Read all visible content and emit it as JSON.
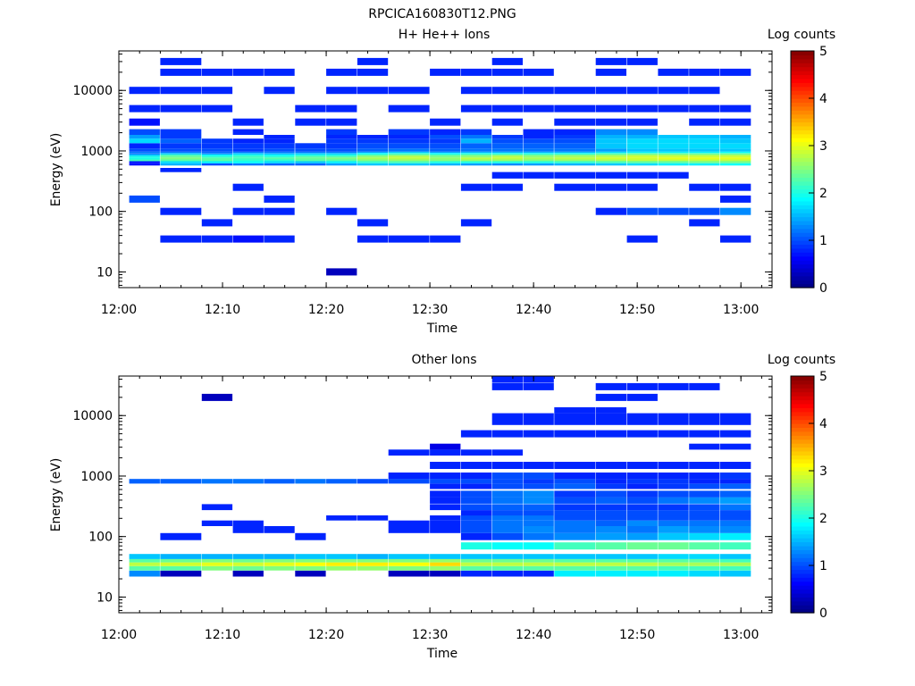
{
  "file_title": "RPCICA160830T12.PNG",
  "colorbar": {
    "label": "Log counts",
    "min": 0,
    "max": 5,
    "ticks": [
      "0",
      "1",
      "2",
      "3",
      "4",
      "5"
    ],
    "colormap": "jet"
  },
  "chart_data": [
    {
      "type": "heatmap",
      "title": "H+ He++ Ions",
      "xlabel": "Time",
      "ylabel": "Energy (eV)",
      "x_ticks": [
        "12:00",
        "12:10",
        "12:20",
        "12:30",
        "12:40",
        "12:50",
        "13:00"
      ],
      "x_range": [
        "12:00",
        "13:03"
      ],
      "y_ticks": [
        "10",
        "100",
        "1000",
        "10000"
      ],
      "y_range": [
        5.5,
        45000
      ],
      "y_scale": "log",
      "z_label": "Log counts",
      "time_bins": [
        "12:01",
        "12:04",
        "12:08",
        "12:11",
        "12:14",
        "12:17",
        "12:20",
        "12:23",
        "12:26",
        "12:30",
        "12:33",
        "12:36",
        "12:39",
        "12:42",
        "12:46",
        "12:49",
        "12:52",
        "12:55",
        "12:58"
      ],
      "energy_bins": [
        10,
        35,
        65,
        100,
        160,
        250,
        400,
        500,
        550,
        600,
        650,
        700,
        750,
        800,
        850,
        900,
        950,
        1000,
        1200,
        1500,
        1700,
        2000,
        3000,
        5000,
        10000,
        20000,
        30000
      ],
      "values": [
        [
          0,
          0,
          0,
          0,
          1,
          0,
          0,
          0,
          0,
          0.7,
          0.7,
          2.2,
          2,
          2,
          1.6,
          1.2,
          1.2,
          1,
          0.8,
          1.7,
          1.4,
          1,
          0.7,
          0.8,
          0.8,
          0,
          0
        ],
        [
          0,
          0.8,
          0,
          0.8,
          0,
          0,
          0,
          0.8,
          0,
          1.5,
          1.7,
          2.3,
          2.5,
          2.4,
          2.2,
          1.6,
          1.2,
          1,
          0.9,
          1.1,
          0.9,
          0.9,
          0,
          0.8,
          0.8,
          0.8,
          0.8
        ],
        [
          0,
          0.8,
          0.8,
          0,
          0,
          0,
          0,
          0,
          0,
          1,
          1.8,
          2.3,
          2.3,
          2.1,
          1.9,
          1.3,
          1.1,
          1,
          0.9,
          0.9,
          0,
          0,
          0,
          0.8,
          0.8,
          0.8,
          0
        ],
        [
          0,
          0.7,
          0,
          0.8,
          0,
          0.8,
          0,
          0,
          0,
          1.2,
          1.9,
          2.1,
          2.2,
          2.2,
          2,
          1.6,
          1.2,
          0.9,
          0.9,
          0.8,
          0,
          0.8,
          0.8,
          0,
          0,
          0.8,
          0
        ],
        [
          0,
          0.8,
          0,
          0.8,
          0.8,
          0,
          0,
          0,
          0,
          1.1,
          1.7,
          2.1,
          2.3,
          2.1,
          1.9,
          1.5,
          1.2,
          1,
          0.9,
          0.8,
          0.8,
          0,
          0,
          0,
          0.8,
          0.8,
          0
        ],
        [
          0,
          0,
          0,
          0,
          0,
          0,
          0,
          0,
          0,
          1.1,
          1.6,
          2.3,
          2.4,
          2.3,
          2,
          1.6,
          1.2,
          1,
          0.9,
          0,
          0,
          0,
          0.8,
          0.8,
          0,
          0,
          0
        ],
        [
          0.3,
          0,
          0,
          0.8,
          0,
          0,
          0,
          0,
          0,
          1.4,
          1.8,
          2.3,
          2.5,
          2.3,
          2,
          1.6,
          1.2,
          1,
          0.9,
          0.9,
          0.8,
          0.9,
          0.8,
          0.8,
          0.8,
          0.8,
          0
        ],
        [
          0,
          0.8,
          0.8,
          0,
          0,
          0,
          0,
          0,
          0,
          1.6,
          2.1,
          2.5,
          2.7,
          2.6,
          2.3,
          1.9,
          1.4,
          1.1,
          1,
          0.9,
          0.8,
          0,
          0,
          0,
          0.8,
          0.8,
          0.8
        ],
        [
          0,
          0.8,
          0,
          0,
          0,
          0,
          0,
          0,
          0,
          1.6,
          2.2,
          2.6,
          2.8,
          2.8,
          2.5,
          2.1,
          1.6,
          1.2,
          1,
          0.9,
          0.8,
          0.9,
          0,
          0.8,
          0.8,
          0,
          0
        ],
        [
          0,
          0.8,
          0,
          0,
          0,
          0,
          0,
          0,
          0,
          1.5,
          2,
          2.5,
          2.6,
          2.5,
          2.3,
          1.9,
          1.4,
          1.1,
          1,
          0.9,
          1,
          0.8,
          0.8,
          0,
          0,
          0.8,
          0
        ],
        [
          0,
          0,
          0.8,
          0,
          0,
          0.8,
          0,
          0,
          0,
          1.4,
          2,
          2.6,
          2.8,
          2.6,
          2.4,
          2,
          1.5,
          1.2,
          1.1,
          1.5,
          1.2,
          0.9,
          0,
          0.8,
          0.8,
          0.8,
          0
        ],
        [
          0,
          0,
          0,
          0,
          0,
          0.8,
          0.8,
          0,
          0,
          1.3,
          2,
          2.6,
          2.8,
          2.8,
          2.5,
          2,
          1.5,
          1.2,
          1.1,
          1,
          0.9,
          0,
          0.8,
          0.8,
          0.8,
          0.8,
          0.8
        ],
        [
          0,
          0,
          0,
          0,
          0,
          0,
          0.8,
          0,
          0,
          1.4,
          2,
          2.5,
          2.7,
          2.6,
          2.4,
          2,
          1.5,
          1.2,
          1.1,
          1,
          0.8,
          0.8,
          0,
          0.8,
          0.8,
          0.8,
          0
        ],
        [
          0,
          0,
          0,
          0,
          0,
          0.8,
          0.8,
          0,
          0,
          1.5,
          2.1,
          2.6,
          2.8,
          2.7,
          2.5,
          2,
          1.5,
          1.2,
          1.1,
          1,
          0.9,
          0.8,
          0.8,
          0.8,
          0.8,
          0,
          0
        ],
        [
          0,
          0,
          0,
          0.8,
          0,
          0.8,
          0.8,
          0,
          0,
          1.6,
          2.2,
          2.7,
          2.9,
          2.8,
          2.6,
          2.2,
          1.7,
          1.4,
          1.6,
          1.6,
          1.5,
          1.3,
          0.8,
          0.8,
          0.8,
          0.8,
          0.8
        ],
        [
          0,
          0.8,
          0,
          1,
          0,
          0.8,
          0.8,
          0,
          0,
          1.7,
          2.3,
          2.8,
          2.9,
          2.9,
          2.7,
          2.3,
          1.8,
          1.6,
          1.7,
          1.7,
          1.5,
          1.3,
          0.8,
          0.8,
          0.8,
          0,
          0.8
        ],
        [
          0,
          0,
          0,
          1,
          0,
          0,
          0.8,
          0,
          0,
          1.8,
          2.3,
          2.8,
          3,
          2.9,
          2.7,
          2.3,
          1.8,
          1.6,
          1.7,
          1.7,
          1.6,
          0,
          0,
          0.8,
          0.8,
          0.8,
          0
        ],
        [
          0,
          0,
          0.8,
          1,
          0,
          0.8,
          0,
          0,
          0,
          1.8,
          2.4,
          2.8,
          3,
          2.9,
          2.7,
          2.3,
          1.8,
          1.6,
          1.7,
          1.7,
          1.6,
          0,
          0.8,
          0.8,
          0.8,
          0.8,
          0
        ],
        [
          0,
          0.8,
          0,
          1.3,
          0.8,
          0.8,
          0,
          0,
          0,
          1.9,
          2.4,
          2.8,
          3,
          2.9,
          2.7,
          2.3,
          1.9,
          1.6,
          1.7,
          1.6,
          1.5,
          0,
          0.8,
          0.8,
          0,
          0.8,
          0
        ]
      ]
    },
    {
      "type": "heatmap",
      "title": "Other Ions",
      "xlabel": "Time",
      "ylabel": "Energy (eV)",
      "x_ticks": [
        "12:00",
        "12:10",
        "12:20",
        "12:30",
        "12:40",
        "12:50",
        "13:00"
      ],
      "x_range": [
        "12:00",
        "13:03"
      ],
      "y_ticks": [
        "10",
        "100",
        "1000",
        "10000"
      ],
      "y_range": [
        5.5,
        45000
      ],
      "y_scale": "log",
      "z_label": "Log counts",
      "time_bins": [
        "12:01",
        "12:04",
        "12:08",
        "12:11",
        "12:14",
        "12:17",
        "12:20",
        "12:23",
        "12:26",
        "12:30",
        "12:33",
        "12:36",
        "12:39",
        "12:42",
        "12:46",
        "12:49",
        "12:52",
        "12:55",
        "12:58"
      ],
      "energy_bins": [
        25,
        30,
        35,
        40,
        45,
        70,
        100,
        130,
        170,
        200,
        250,
        300,
        400,
        500,
        700,
        800,
        1000,
        1500,
        2500,
        3000,
        5000,
        8000,
        10000,
        12000,
        20000,
        30000,
        40000
      ],
      "values": [
        [
          1.3,
          2.3,
          2.8,
          2.3,
          1.6,
          0,
          0,
          0,
          0,
          0,
          0,
          0,
          0,
          0,
          0,
          1.1,
          0,
          0,
          0,
          0,
          0,
          0,
          0,
          0,
          0,
          0,
          0
        ],
        [
          0.3,
          2.3,
          2.9,
          2.4,
          1.5,
          0,
          0.8,
          0,
          0,
          0,
          0,
          0,
          0,
          0,
          0,
          1.1,
          0,
          0,
          0,
          0,
          0,
          0,
          0,
          0,
          0,
          0,
          0
        ],
        [
          0,
          2.5,
          3,
          2.5,
          1.5,
          0,
          0,
          0,
          0.8,
          0,
          0,
          0.8,
          0,
          0,
          0,
          1.2,
          0,
          0,
          0,
          0,
          0,
          0,
          0,
          0,
          0.3,
          0,
          0
        ],
        [
          0.3,
          2.4,
          2.9,
          2.4,
          1.5,
          0,
          0,
          0.8,
          0.8,
          0,
          0,
          0,
          0,
          0,
          0,
          1.2,
          0,
          0,
          0,
          0,
          0,
          0,
          0,
          0,
          0,
          0,
          0
        ],
        [
          0,
          2.5,
          3,
          2.5,
          1.5,
          0,
          0,
          0.8,
          0,
          0,
          0,
          0,
          0,
          0,
          0,
          1.1,
          0,
          0,
          0,
          0,
          0,
          0,
          0,
          0,
          0,
          0,
          0
        ],
        [
          0.3,
          2.5,
          3.1,
          2.5,
          1.6,
          0,
          0.8,
          0,
          0,
          0,
          0,
          0,
          0,
          0,
          0,
          1.2,
          0,
          0,
          0,
          0,
          0,
          0,
          0,
          0,
          0,
          0,
          0
        ],
        [
          0,
          2.6,
          3.2,
          2.5,
          1.6,
          0,
          0,
          0,
          0,
          0.8,
          0,
          0,
          0,
          0,
          0,
          1.1,
          0,
          0,
          0,
          0,
          0,
          0,
          0,
          0,
          0,
          0,
          0
        ],
        [
          0,
          2.6,
          3.2,
          2.5,
          1.5,
          0,
          0,
          0,
          0,
          0.8,
          0,
          0,
          0,
          0,
          0,
          1,
          0,
          0,
          0,
          0,
          0,
          0,
          0,
          0,
          0,
          0,
          0
        ],
        [
          0.3,
          2.5,
          3.1,
          2.5,
          1.6,
          0,
          0,
          0.8,
          0.8,
          0,
          0,
          0,
          0,
          0,
          0,
          1,
          0.8,
          0,
          0.8,
          0,
          0,
          0,
          0,
          0,
          0,
          0,
          0
        ],
        [
          0.3,
          2.6,
          3.3,
          2.6,
          1.6,
          0,
          0,
          0.8,
          0.8,
          0.8,
          0,
          0.8,
          0.8,
          0.8,
          0.8,
          1,
          0.8,
          0.8,
          0.8,
          0.5,
          0,
          0,
          0,
          0,
          0,
          0,
          0
        ],
        [
          0.8,
          2.3,
          2.8,
          2.4,
          1.6,
          2,
          0.8,
          1,
          1,
          1,
          0.8,
          1,
          1,
          1,
          0.8,
          1,
          0.8,
          0.8,
          0.8,
          0,
          0.8,
          0,
          0,
          0,
          0,
          0,
          0
        ],
        [
          0.8,
          2.3,
          2.8,
          2.4,
          1.6,
          1.9,
          1,
          1.2,
          1.2,
          1.2,
          1,
          1.1,
          1.2,
          1.2,
          1,
          1,
          1,
          0.8,
          0.8,
          0,
          0.8,
          0.8,
          0.8,
          0,
          0,
          0.8,
          0.8
        ],
        [
          0.8,
          2.3,
          2.8,
          2.4,
          1.6,
          1.9,
          1.2,
          1.3,
          1.2,
          1.2,
          1,
          1.1,
          1.3,
          1.3,
          1,
          0.9,
          1,
          0.8,
          0,
          0,
          0.8,
          0.8,
          0.8,
          0,
          0,
          0.8,
          0.8
        ],
        [
          1.8,
          2.3,
          2.8,
          2.3,
          1.6,
          2.2,
          1.3,
          1.2,
          1.2,
          1,
          1,
          0.9,
          1,
          0.9,
          1.1,
          1,
          0.8,
          0.8,
          0,
          0,
          0.8,
          0.8,
          0.8,
          0.8,
          0,
          0,
          0
        ],
        [
          1.8,
          2.3,
          2.8,
          2.3,
          1.6,
          2.3,
          1.4,
          1.3,
          1.1,
          1,
          1,
          0.9,
          1.1,
          1,
          0.9,
          0.8,
          0.8,
          0.8,
          0,
          0,
          0.8,
          0.8,
          0.8,
          0.8,
          0.8,
          0.8,
          0
        ],
        [
          1.8,
          2.3,
          2.8,
          2.3,
          1.6,
          2.4,
          1.4,
          1.2,
          1.3,
          1,
          1,
          0.9,
          1,
          0.9,
          0.8,
          0.9,
          0.8,
          0.8,
          0,
          0,
          0.8,
          0.8,
          0.8,
          0,
          0.8,
          0.8,
          0
        ],
        [
          1.8,
          2.2,
          2.7,
          2.3,
          1.7,
          2.4,
          1.6,
          1.4,
          1.2,
          1,
          1,
          0.9,
          1.2,
          1,
          0.9,
          0.9,
          0.8,
          0.8,
          0,
          0,
          0.8,
          0.8,
          0.8,
          0,
          0,
          0.8,
          0
        ],
        [
          1.7,
          2.2,
          2.7,
          2.3,
          1.7,
          2.3,
          1.7,
          1.3,
          1.2,
          1,
          1,
          1,
          1.3,
          1,
          1,
          0.8,
          0.8,
          0.8,
          0,
          0.8,
          0.8,
          0.8,
          0.8,
          0,
          0,
          0.8,
          0
        ],
        [
          1.6,
          2.2,
          2.7,
          2.2,
          1.6,
          2.2,
          1.8,
          1.3,
          1.2,
          1,
          1,
          1.2,
          1.4,
          1.1,
          1.1,
          0.8,
          0.9,
          0.8,
          0,
          0.8,
          0.8,
          0.8,
          0.8,
          0,
          0,
          0,
          0
        ]
      ]
    }
  ]
}
